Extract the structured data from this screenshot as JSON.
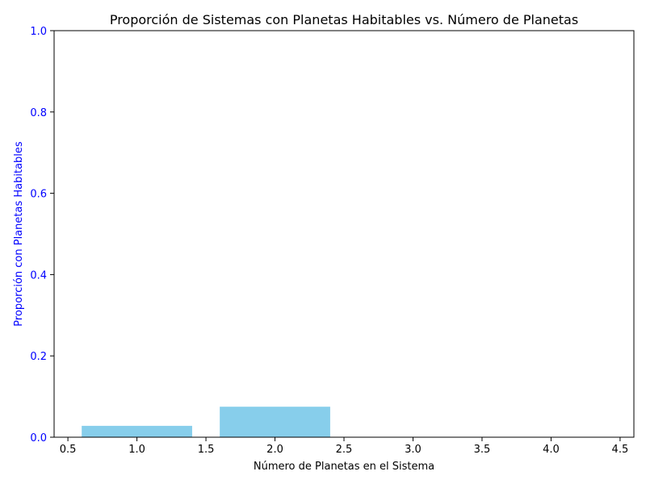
{
  "chart_data": {
    "type": "bar",
    "title": "Proporción de Sistemas con Planetas Habitables vs. Número de Planetas",
    "xlabel": "Número de Planetas en el Sistema",
    "ylabel": "Proporción con Planetas Habitables",
    "x": [
      1,
      2,
      3,
      4
    ],
    "values": [
      0.028,
      0.075,
      0.0,
      0.0
    ],
    "bar_width": 0.8,
    "xlim": [
      0.4,
      4.6
    ],
    "ylim": [
      0,
      1.0
    ],
    "xticks": [
      0.5,
      1.0,
      1.5,
      2.0,
      2.5,
      3.0,
      3.5,
      4.0,
      4.5
    ],
    "xtick_labels": [
      "0.5",
      "1.0",
      "1.5",
      "2.0",
      "2.5",
      "3.0",
      "3.5",
      "4.0",
      "4.5"
    ],
    "yticks": [
      0.0,
      0.2,
      0.4,
      0.6,
      0.8,
      1.0
    ],
    "ytick_labels": [
      "0.0",
      "0.2",
      "0.4",
      "0.6",
      "0.8",
      "1.0"
    ],
    "grid": false,
    "legend": "none",
    "colors": {
      "bar": "#87ceeb",
      "ylabel": "#0000ff",
      "ytick": "#0000ff",
      "axis": "#000000",
      "text": "#000000"
    }
  }
}
